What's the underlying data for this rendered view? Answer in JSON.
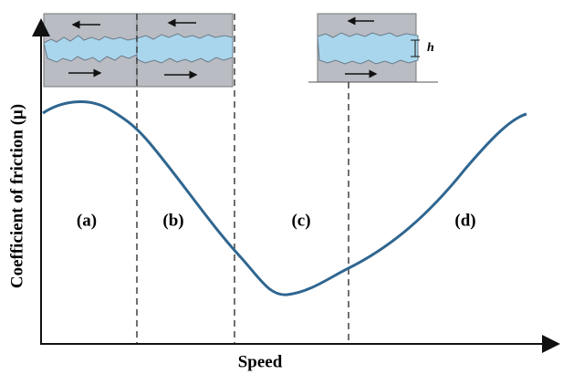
{
  "y_axis_label": "Coefficient of friction (μ)",
  "x_axis_label": "Speed",
  "regions": [
    {
      "label": "(a)"
    },
    {
      "label": "(b)"
    },
    {
      "label": "(c)"
    },
    {
      "label": "(d)"
    }
  ],
  "film_thickness_label": "h"
}
